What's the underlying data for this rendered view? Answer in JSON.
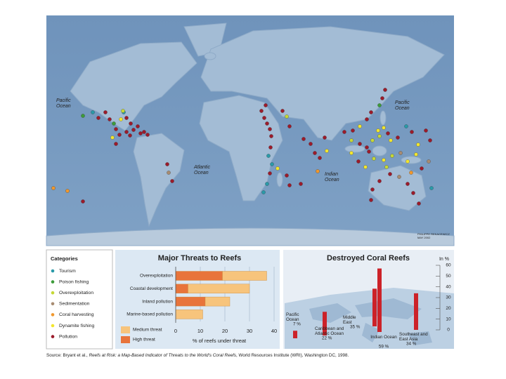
{
  "map": {
    "labels": [
      {
        "lines": [
          "Pacific",
          "Ocean"
        ]
      },
      {
        "lines": [
          "Atlantic",
          "Ocean"
        ]
      },
      {
        "lines": [
          "Indian",
          "Ocean"
        ]
      },
      {
        "lines": [
          "Pacific",
          "Ocean"
        ]
      }
    ],
    "credit": [
      "PHILIPPE REKACEWICZ",
      "MAY 2002"
    ]
  },
  "legend": {
    "title": "Categories",
    "items": [
      {
        "label": "Tourism",
        "color": "#2a9aa8"
      },
      {
        "label": "Poison fishing",
        "color": "#3d9b3a"
      },
      {
        "label": "Overexploitation",
        "color": "#c6d836"
      },
      {
        "label": "Sedimentation",
        "color": "#a88c72"
      },
      {
        "label": "Coral harvesting",
        "color": "#f0982e"
      },
      {
        "label": "Dynamite fishing",
        "color": "#f2e62e"
      },
      {
        "label": "Pollution",
        "color": "#9b1b2b"
      }
    ]
  },
  "chart_data": [
    {
      "type": "stacked-hbar",
      "title": "Major Threats to Reefs",
      "categories": [
        "Overexploitation",
        "Coastal development",
        "Inland pollution",
        "Marine-based pollution"
      ],
      "series": [
        {
          "name": "High threat",
          "color": "#e8743b",
          "values": [
            19,
            5,
            12,
            0
          ]
        },
        {
          "name": "Medium threat",
          "color": "#f7c47c",
          "values": [
            18,
            25,
            10,
            11
          ]
        }
      ],
      "xlim": [
        0,
        40
      ],
      "xticks": [
        0,
        10,
        20,
        30,
        40
      ],
      "x_label": "% of reefs under threat"
    },
    {
      "type": "bar",
      "title": "Destroyed Coral Reefs",
      "y_label": "In %",
      "categories": [
        "Pacific Ocean",
        "Caribbean and Atlantic Ocean",
        "Middle East",
        "Indian Ocean",
        "Southeast and East Asia"
      ],
      "values": [
        7,
        22,
        35,
        59,
        34
      ],
      "value_labels": [
        "7 %",
        "22 %",
        "35 %",
        "59 %",
        "34 %"
      ],
      "color": "#cc2229",
      "ylim": [
        0,
        60
      ],
      "yticks": [
        0,
        10,
        20,
        30,
        40,
        50,
        60
      ]
    }
  ],
  "source": [
    "Source: Bryant et al., ",
    "Reefs at Risk: a Map-Based Indicator of Threats to the World's Coral Reefs",
    ", World Resources Institute (WRI), Washington DC, 1998."
  ]
}
